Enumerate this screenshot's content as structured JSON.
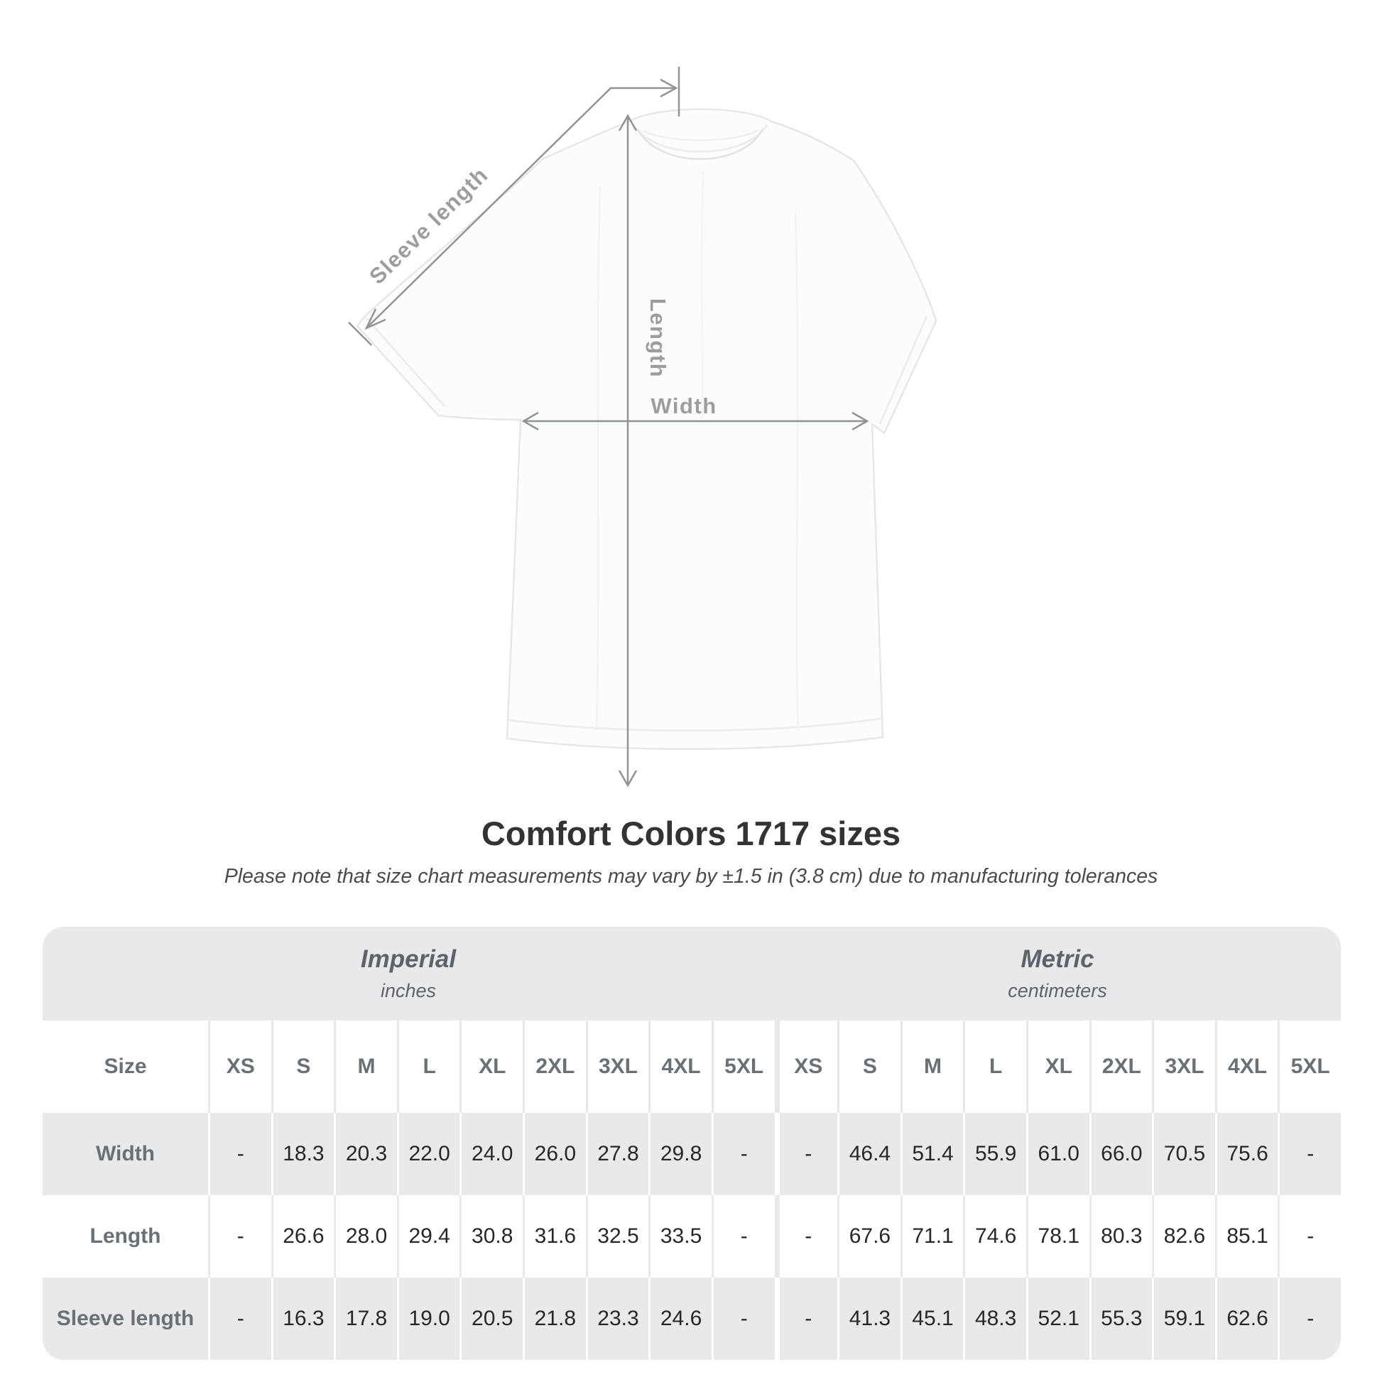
{
  "diagram": {
    "labels": {
      "sleeve": "Sleeve length",
      "length": "Length",
      "width": "Width"
    }
  },
  "title": "Comfort Colors 1717 sizes",
  "subtitle": "Please note that size chart measurements may vary by ±1.5 in (3.8 cm) due to manufacturing tolerances",
  "table": {
    "corner_label": "Size",
    "sections": [
      {
        "name": "Imperial",
        "unit": "inches"
      },
      {
        "name": "Metric",
        "unit": "centimeters"
      }
    ],
    "sizes": [
      "XS",
      "S",
      "M",
      "L",
      "XL",
      "2XL",
      "3XL",
      "4XL",
      "5XL"
    ],
    "rows": [
      {
        "label": "Width",
        "imperial": [
          "-",
          "18.3",
          "20.3",
          "22.0",
          "24.0",
          "26.0",
          "27.8",
          "29.8",
          "-"
        ],
        "metric": [
          "-",
          "46.4",
          "51.4",
          "55.9",
          "61.0",
          "66.0",
          "70.5",
          "75.6",
          "-"
        ]
      },
      {
        "label": "Length",
        "imperial": [
          "-",
          "26.6",
          "28.0",
          "29.4",
          "30.8",
          "31.6",
          "32.5",
          "33.5",
          "-"
        ],
        "metric": [
          "-",
          "67.6",
          "71.1",
          "74.6",
          "78.1",
          "80.3",
          "82.6",
          "85.1",
          "-"
        ]
      },
      {
        "label": "Sleeve length",
        "imperial": [
          "-",
          "16.3",
          "17.8",
          "19.0",
          "20.5",
          "21.8",
          "23.3",
          "24.6",
          "-"
        ],
        "metric": [
          "-",
          "41.3",
          "45.1",
          "48.3",
          "52.1",
          "55.3",
          "59.1",
          "62.6",
          "-"
        ]
      }
    ]
  },
  "colors": {
    "table_band": "#e9e9eb",
    "header_text": "#697076",
    "value_text": "#26282a",
    "measure_line": "#909496",
    "measure_label": "#9b9da0",
    "title_text": "#333333"
  }
}
